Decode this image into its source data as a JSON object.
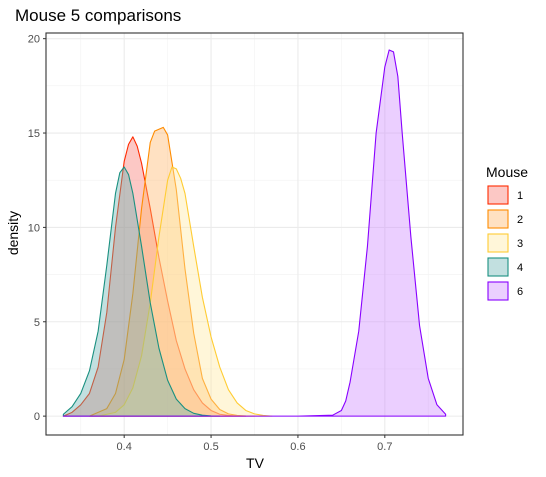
{
  "chart_data": {
    "type": "area",
    "title": "Mouse 5 comparisons",
    "xlabel": "TV",
    "ylabel": "density",
    "xlim": [
      0.31,
      0.79
    ],
    "ylim": [
      -1,
      20.3
    ],
    "xticks": [
      0.4,
      0.5,
      0.6,
      0.7
    ],
    "xtick_labels": [
      "0.4",
      "0.5",
      "0.6",
      "0.7"
    ],
    "yticks": [
      0,
      5,
      10,
      15,
      20
    ],
    "ytick_labels": [
      "0",
      "5",
      "10",
      "15",
      "20"
    ],
    "grid": true,
    "legend": {
      "title": "Mouse",
      "position": "right"
    },
    "series": [
      {
        "name": "1",
        "stroke": "#ff2a00",
        "fill": "#f8766d",
        "x": [
          0.33,
          0.34,
          0.35,
          0.36,
          0.37,
          0.38,
          0.39,
          0.4,
          0.405,
          0.41,
          0.415,
          0.42,
          0.43,
          0.44,
          0.45,
          0.46,
          0.47,
          0.48,
          0.49,
          0.5,
          0.51,
          0.52,
          0.53,
          0.54
        ],
        "y": [
          0.0,
          0.2,
          0.6,
          1.2,
          2.6,
          5.5,
          10.0,
          13.5,
          14.4,
          14.8,
          14.3,
          13.4,
          11.0,
          8.4,
          6.1,
          4.0,
          2.5,
          1.4,
          0.7,
          0.3,
          0.1,
          0.04,
          0.01,
          0.0
        ]
      },
      {
        "name": "2",
        "stroke": "#ff8c00",
        "fill": "#ffb366",
        "x": [
          0.36,
          0.38,
          0.39,
          0.4,
          0.41,
          0.42,
          0.43,
          0.435,
          0.44,
          0.445,
          0.45,
          0.46,
          0.47,
          0.48,
          0.49,
          0.5,
          0.51,
          0.52,
          0.53,
          0.54,
          0.55
        ],
        "y": [
          0.0,
          0.4,
          1.2,
          3.0,
          6.5,
          11.0,
          14.5,
          15.1,
          15.2,
          15.3,
          14.9,
          12.0,
          7.8,
          4.4,
          2.0,
          0.9,
          0.35,
          0.12,
          0.04,
          0.01,
          0.0
        ]
      },
      {
        "name": "3",
        "stroke": "#ffcc33",
        "fill": "#ffe8a0",
        "x": [
          0.37,
          0.39,
          0.4,
          0.41,
          0.42,
          0.43,
          0.44,
          0.45,
          0.455,
          0.46,
          0.465,
          0.47,
          0.48,
          0.49,
          0.5,
          0.51,
          0.52,
          0.53,
          0.54,
          0.55,
          0.56,
          0.57
        ],
        "y": [
          0.0,
          0.2,
          0.6,
          1.5,
          3.2,
          6.0,
          9.5,
          12.5,
          13.2,
          13.1,
          12.6,
          11.8,
          9.0,
          6.3,
          4.2,
          2.6,
          1.4,
          0.7,
          0.3,
          0.12,
          0.04,
          0.0
        ]
      },
      {
        "name": "4",
        "stroke": "#1a9080",
        "fill": "#66b2b2",
        "x": [
          0.33,
          0.34,
          0.35,
          0.36,
          0.37,
          0.38,
          0.39,
          0.395,
          0.4,
          0.405,
          0.41,
          0.42,
          0.43,
          0.44,
          0.45,
          0.46,
          0.47,
          0.48,
          0.49,
          0.5,
          0.51
        ],
        "y": [
          0.1,
          0.5,
          1.2,
          2.4,
          4.5,
          8.0,
          11.8,
          12.9,
          13.2,
          12.8,
          11.8,
          9.0,
          6.0,
          3.6,
          1.9,
          0.9,
          0.4,
          0.15,
          0.05,
          0.01,
          0.0
        ]
      },
      {
        "name": "6",
        "stroke": "#8800ff",
        "fill": "#cc88ff",
        "x": [
          0.33,
          0.6,
          0.64,
          0.65,
          0.655,
          0.66,
          0.67,
          0.68,
          0.69,
          0.7,
          0.705,
          0.71,
          0.715,
          0.72,
          0.73,
          0.74,
          0.75,
          0.76,
          0.77
        ],
        "y": [
          0.0,
          0.0,
          0.05,
          0.3,
          0.8,
          1.8,
          4.5,
          9.0,
          15.0,
          18.5,
          19.4,
          19.3,
          18.0,
          15.0,
          9.5,
          4.8,
          2.0,
          0.6,
          0.1
        ]
      }
    ]
  }
}
